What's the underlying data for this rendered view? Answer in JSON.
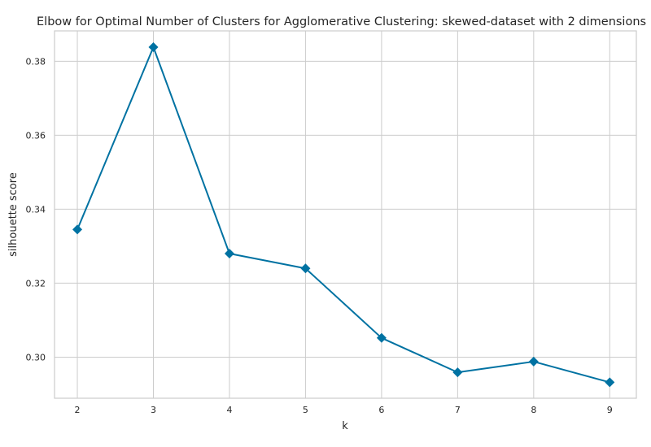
{
  "chart_data": {
    "type": "line",
    "title": "Elbow for Optimal Number of Clusters for Agglomerative Clustering: skewed-dataset with 2 dimensions",
    "xlabel": "k",
    "ylabel": "silhouette score",
    "x": [
      2,
      3,
      4,
      5,
      6,
      7,
      8,
      9
    ],
    "series": [
      {
        "values": [
          0.3345,
          0.3838,
          0.328,
          0.324,
          0.3052,
          0.2959,
          0.2988,
          0.2932
        ],
        "color": "#0072a2",
        "marker": "diamond"
      }
    ],
    "xticks": [
      2,
      3,
      4,
      5,
      6,
      7,
      8,
      9
    ],
    "yticks": [
      0.3,
      0.32,
      0.34,
      0.36,
      0.38
    ],
    "ytick_labels": [
      "0.30",
      "0.32",
      "0.34",
      "0.36",
      "0.38"
    ],
    "xlim": [
      1.7,
      9.35
    ],
    "ylim": [
      0.2889,
      0.3882
    ],
    "grid": true,
    "legend": "none"
  }
}
